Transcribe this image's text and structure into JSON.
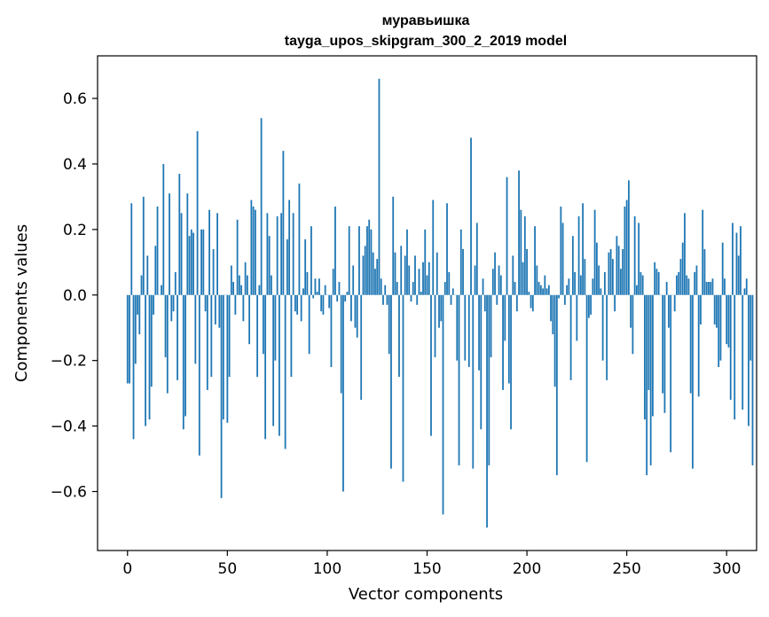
{
  "chart_data": {
    "type": "bar",
    "title": "муравьишка",
    "subtitle": "tayga_upos_skipgram_300_2_2019 model",
    "xlabel": "Vector components",
    "ylabel": "Components values",
    "xlim": [
      -15,
      315
    ],
    "ylim": [
      -0.78,
      0.73
    ],
    "xticks": [
      0,
      50,
      100,
      150,
      200,
      250,
      300
    ],
    "yticks": [
      -0.6,
      -0.4,
      -0.2,
      0.0,
      0.2,
      0.4,
      0.6
    ],
    "ytick_labels": [
      "−0.6",
      "−0.4",
      "−0.2",
      "0.0",
      "0.2",
      "0.4",
      "0.6"
    ],
    "grid": false,
    "bar_color": "#1f77b4",
    "values": [
      -0.27,
      -0.27,
      0.28,
      -0.44,
      -0.21,
      -0.06,
      -0.12,
      0.06,
      0.3,
      -0.4,
      0.12,
      -0.38,
      -0.28,
      -0.06,
      0.15,
      0.27,
      0.0,
      0.03,
      0.4,
      -0.19,
      -0.3,
      0.31,
      -0.08,
      -0.05,
      0.07,
      -0.26,
      0.37,
      0.25,
      -0.41,
      -0.37,
      0.31,
      0.18,
      0.2,
      0.19,
      -0.21,
      0.5,
      -0.49,
      0.2,
      0.2,
      -0.05,
      -0.29,
      0.26,
      -0.25,
      0.14,
      -0.09,
      0.25,
      -0.1,
      -0.62,
      -0.38,
      0.0,
      -0.39,
      -0.25,
      0.09,
      0.04,
      -0.06,
      0.23,
      0.06,
      0.03,
      -0.08,
      0.1,
      0.06,
      -0.15,
      0.29,
      0.27,
      0.26,
      -0.25,
      0.03,
      0.54,
      -0.18,
      -0.44,
      0.25,
      0.18,
      0.06,
      -0.4,
      -0.2,
      0.24,
      -0.43,
      0.25,
      0.44,
      -0.47,
      0.17,
      0.29,
      -0.25,
      0.25,
      -0.05,
      -0.06,
      0.34,
      -0.08,
      0.02,
      0.17,
      0.07,
      -0.18,
      0.21,
      -0.01,
      0.05,
      0.01,
      0.05,
      -0.05,
      -0.06,
      0.03,
      0.0,
      -0.04,
      -0.22,
      0.08,
      0.27,
      -0.02,
      0.04,
      -0.3,
      -0.6,
      -0.02,
      0.01,
      0.21,
      -0.08,
      0.09,
      -0.1,
      -0.13,
      0.21,
      -0.32,
      0.12,
      0.15,
      0.21,
      0.23,
      0.2,
      0.13,
      0.08,
      0.11,
      0.66,
      0.05,
      -0.03,
      0.03,
      -0.03,
      -0.18,
      -0.53,
      0.3,
      0.13,
      0.04,
      -0.25,
      0.15,
      -0.57,
      0.12,
      0.2,
      0.09,
      -0.02,
      0.04,
      0.12,
      -0.03,
      0.08,
      0.01,
      0.1,
      0.2,
      0.06,
      0.1,
      -0.43,
      0.29,
      -0.19,
      0.13,
      -0.1,
      -0.08,
      -0.67,
      0.04,
      0.28,
      0.07,
      -0.03,
      0.02,
      0.0,
      -0.2,
      -0.52,
      0.2,
      0.14,
      -0.2,
      0.0,
      -0.22,
      0.48,
      -0.53,
      0.09,
      0.22,
      -0.23,
      -0.41,
      0.05,
      -0.05,
      -0.71,
      -0.52,
      -0.19,
      0.08,
      0.13,
      -0.03,
      0.09,
      0.06,
      -0.29,
      -0.14,
      0.36,
      -0.27,
      -0.41,
      0.12,
      0.04,
      -0.05,
      0.38,
      0.26,
      0.1,
      0.24,
      0.14,
      0.01,
      -0.04,
      -0.05,
      0.21,
      0.09,
      0.04,
      0.03,
      0.02,
      0.06,
      0.02,
      0.03,
      -0.08,
      -0.12,
      -0.28,
      -0.55,
      -0.01,
      0.27,
      0.22,
      -0.03,
      0.03,
      0.05,
      -0.26,
      0.18,
      0.07,
      -0.14,
      0.24,
      0.06,
      0.28,
      0.11,
      -0.51,
      -0.07,
      -0.06,
      0.05,
      0.26,
      0.16,
      0.09,
      0.02,
      -0.2,
      0.07,
      -0.26,
      0.13,
      0.14,
      0.11,
      -0.05,
      0.18,
      0.15,
      0.08,
      0.14,
      0.27,
      0.29,
      0.35,
      -0.1,
      -0.18,
      0.24,
      0.03,
      0.22,
      0.07,
      0.06,
      -0.38,
      -0.55,
      -0.29,
      -0.52,
      -0.37,
      0.1,
      0.08,
      0.07,
      0.0,
      -0.3,
      -0.36,
      0.04,
      -0.1,
      -0.48,
      0.0,
      -0.05,
      0.06,
      0.07,
      0.11,
      0.16,
      0.25,
      0.06,
      0.05,
      -0.3,
      -0.53,
      0.07,
      0.09,
      -0.31,
      -0.09,
      0.26,
      0.14,
      0.04,
      0.04,
      0.04,
      0.05,
      -0.09,
      -0.1,
      -0.22,
      -0.2,
      0.16,
      0.05,
      -0.15,
      -0.16,
      -0.32,
      0.22,
      -0.38,
      0.19,
      0.12,
      0.21,
      -0.35,
      0.02,
      0.05,
      -0.4,
      -0.2,
      -0.52
    ]
  }
}
